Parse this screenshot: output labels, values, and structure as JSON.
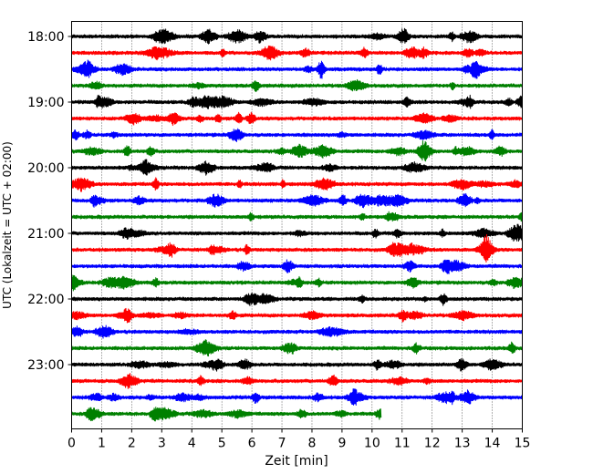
{
  "chart_data": {
    "type": "line",
    "title": "",
    "xlabel": "Zeit  [min]",
    "ylabel": "UTC (Lokalzeit = UTC + 02:00)",
    "xlim": [
      0,
      15
    ],
    "x_ticks": [
      0,
      1,
      2,
      3,
      4,
      5,
      6,
      7,
      8,
      9,
      10,
      11,
      12,
      13,
      14,
      15
    ],
    "x_tick_labels": [
      "0",
      "1",
      "2",
      "3",
      "4",
      "5",
      "6",
      "7",
      "8",
      "9",
      "10",
      "11",
      "12",
      "13",
      "14",
      "15"
    ],
    "y_ticks": [
      "18:00",
      "19:00",
      "20:00",
      "21:00",
      "22:00",
      "23:00"
    ],
    "grid": "vertical dotted",
    "colors": [
      "#000000",
      "#ff0000",
      "#0000ff",
      "#008000"
    ],
    "color_names": [
      "black",
      "red",
      "blue",
      "green"
    ],
    "traces": [
      {
        "start": "18:00",
        "end_min": 15,
        "color": "black"
      },
      {
        "start": "18:15",
        "end_min": 15,
        "color": "red"
      },
      {
        "start": "18:30",
        "end_min": 15,
        "color": "blue"
      },
      {
        "start": "18:45",
        "end_min": 15,
        "color": "green"
      },
      {
        "start": "19:00",
        "end_min": 15,
        "color": "black"
      },
      {
        "start": "19:15",
        "end_min": 15,
        "color": "red"
      },
      {
        "start": "19:30",
        "end_min": 15,
        "color": "blue"
      },
      {
        "start": "19:45",
        "end_min": 15,
        "color": "green"
      },
      {
        "start": "20:00",
        "end_min": 15,
        "color": "black"
      },
      {
        "start": "20:15",
        "end_min": 15,
        "color": "red"
      },
      {
        "start": "20:30",
        "end_min": 15,
        "color": "blue"
      },
      {
        "start": "20:45",
        "end_min": 15,
        "color": "green"
      },
      {
        "start": "21:00",
        "end_min": 15,
        "color": "black"
      },
      {
        "start": "21:15",
        "end_min": 15,
        "color": "red"
      },
      {
        "start": "21:30",
        "end_min": 15,
        "color": "blue"
      },
      {
        "start": "21:45",
        "end_min": 15,
        "color": "green"
      },
      {
        "start": "22:00",
        "end_min": 15,
        "color": "black"
      },
      {
        "start": "22:15",
        "end_min": 15,
        "color": "red"
      },
      {
        "start": "22:30",
        "end_min": 15,
        "color": "blue"
      },
      {
        "start": "22:45",
        "end_min": 15,
        "color": "green"
      },
      {
        "start": "23:00",
        "end_min": 15,
        "color": "black"
      },
      {
        "start": "23:15",
        "end_min": 15,
        "color": "red"
      },
      {
        "start": "23:30",
        "end_min": 15,
        "color": "blue"
      },
      {
        "start": "23:45",
        "end_min": 10.3,
        "color": "green"
      }
    ]
  }
}
